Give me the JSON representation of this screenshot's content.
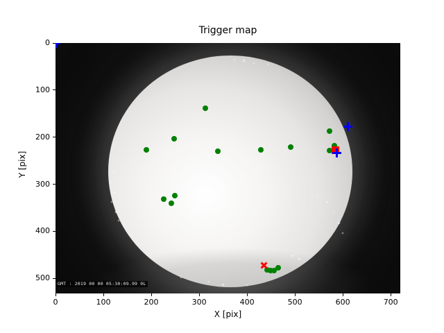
{
  "figure": {
    "title": "Trigger map",
    "xlabel": "X [pix]",
    "ylabel": "Y [pix]",
    "timestamp_overlay": "GMT : 2019 00 00 05:30:09.99 0L"
  },
  "chart_data": {
    "type": "scatter",
    "title": "Trigger map",
    "xlabel": "X [pix]",
    "ylabel": "Y [pix]",
    "xlim": [
      0,
      720
    ],
    "ylim": [
      532,
      0
    ],
    "x_ticks": [
      0,
      100,
      200,
      300,
      400,
      500,
      600,
      700
    ],
    "y_ticks": [
      0,
      100,
      200,
      300,
      400,
      500
    ],
    "grid": false,
    "legend": null,
    "background_description": "grayscale fisheye camera frame showing a bright illuminated circular dome on a black field with a dark gray limb halo",
    "series": [
      {
        "name": "green-trigger-dots",
        "marker": "circle",
        "color": "#008000",
        "size": 8,
        "points": [
          [
            313,
            139
          ],
          [
            248,
            203
          ],
          [
            190,
            227
          ],
          [
            339,
            230
          ],
          [
            429,
            227
          ],
          [
            491,
            221
          ],
          [
            572,
            187
          ],
          [
            572,
            229
          ],
          [
            582,
            218
          ],
          [
            226,
            332
          ],
          [
            249,
            324
          ],
          [
            242,
            340
          ],
          [
            442,
            482
          ],
          [
            449,
            484
          ],
          [
            456,
            484
          ],
          [
            465,
            477
          ]
        ]
      },
      {
        "name": "red-square-trigger",
        "marker": "square",
        "color": "#ff0000",
        "size": 11,
        "points": [
          [
            584,
            227
          ]
        ]
      },
      {
        "name": "red-x-trigger",
        "marker": "x",
        "color": "#ff0000",
        "size": 11,
        "points": [
          [
            436,
            472
          ]
        ]
      },
      {
        "name": "blue-plus-markers",
        "marker": "plus",
        "color": "#0000ff",
        "size": 13,
        "points": [
          [
            610,
            178
          ],
          [
            587,
            234
          ],
          [
            0,
            0
          ]
        ]
      }
    ]
  },
  "scene": {
    "colors": {
      "image_background": "#0c0c0c",
      "dome_bright": "#ffffff",
      "limb_gray": "#3a3a3a",
      "green": "#008000",
      "red": "#ff0000",
      "blue": "#0000ff"
    },
    "speckles": [
      [
        82,
        185,
        3
      ],
      [
        79,
        200,
        2
      ],
      [
        84,
        214,
        3
      ],
      [
        80,
        228,
        2
      ],
      [
        86,
        242,
        3
      ],
      [
        90,
        255,
        2
      ],
      [
        257,
        23,
        2
      ],
      [
        270,
        24,
        3
      ],
      [
        285,
        28,
        2
      ],
      [
        305,
        30,
        2
      ],
      [
        377,
        220,
        2
      ],
      [
        390,
        228,
        3
      ],
      [
        400,
        243,
        2
      ],
      [
        407,
        258,
        3
      ],
      [
        413,
        273,
        2
      ],
      [
        340,
        305,
        3
      ],
      [
        350,
        310,
        3
      ],
      [
        220,
        343,
        2
      ],
      [
        240,
        347,
        3
      ],
      [
        275,
        348,
        2
      ],
      [
        180,
        337,
        2
      ]
    ]
  }
}
